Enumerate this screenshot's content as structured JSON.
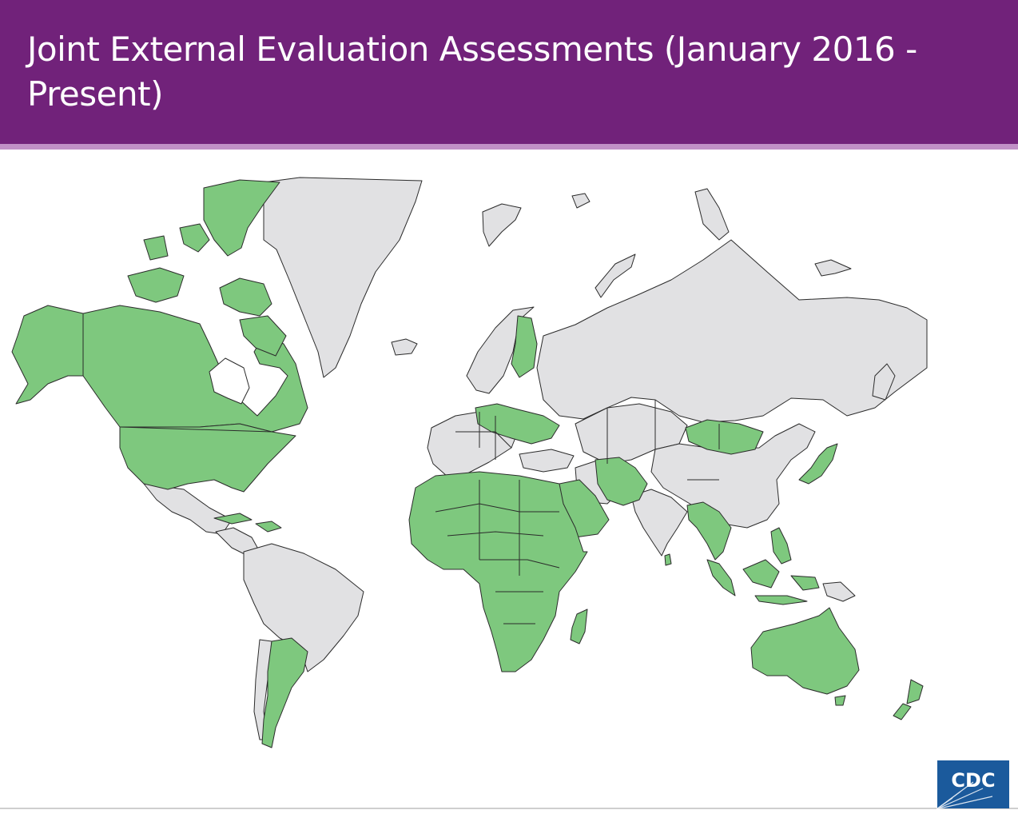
{
  "header": {
    "title": "Joint External Evaluation Assessments (January 2016 - Present)"
  },
  "map": {
    "assessed_color": "#7ec87e",
    "not_assessed_color": "#e1e1e3",
    "border_color": "#2b2b2b",
    "assessed_regions": [
      "Canada",
      "United States",
      "Alaska",
      "Canadian Arctic Archipelago",
      "Argentina",
      "Finland",
      "Mongolia",
      "Japan",
      "Australia",
      "New Zealand",
      "Africa",
      "Arabian Peninsula",
      "Pakistan",
      "Afghanistan",
      "Southeast Asia",
      "Indonesia",
      "Philippines",
      "Madagascar",
      "Haiti"
    ],
    "not_assessed_regions": [
      "Greenland",
      "Russia",
      "China",
      "India",
      "Brazil",
      "Mexico",
      "Western Europe",
      "Scandinavia",
      "Iran",
      "Kazakhstan",
      "Papua New Guinea"
    ]
  },
  "logo": {
    "text": "CDC",
    "color": "#1b5a9c"
  }
}
